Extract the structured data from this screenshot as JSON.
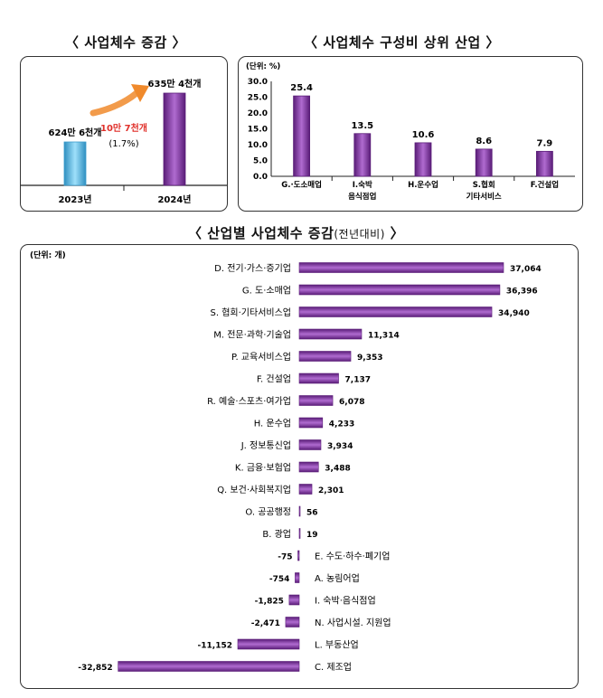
{
  "titles": {
    "left": "〈 사업체수 증감 〉",
    "right": "〈 사업체수 구성비 상위 산업 〉",
    "bottom_main": "〈 산업별 사업체수 증감",
    "bottom_sub": "(전년대비)",
    "bottom_end": " 〉"
  },
  "colors": {
    "blue_bar": "#5bbfe8",
    "purple_bar": "#7a2e9a",
    "arrow": "#f08a2c",
    "increase_text": "#e0302a"
  },
  "chart_data": [
    {
      "type": "bar",
      "title": "〈 사업체수 증감 〉",
      "categories": [
        "2023년",
        "2024년"
      ],
      "values": [
        6246,
        6354
      ],
      "unit": "천개",
      "data_labels": [
        "624만 6천개",
        "635만 4천개"
      ],
      "annotation": {
        "text": "10만 7천개",
        "subtext": "(1.7%)"
      }
    },
    {
      "type": "bar",
      "title": "〈 사업체수 구성비 상위 산업 〉",
      "unit_label": "(단위: %)",
      "categories": [
        [
          "G.·도소매업"
        ],
        [
          "I.숙박",
          "음식점업"
        ],
        [
          "H.운수업"
        ],
        [
          "S.협회",
          "기타서비스"
        ],
        [
          "F.건설업"
        ]
      ],
      "values": [
        25.4,
        13.5,
        10.6,
        8.6,
        7.9
      ],
      "value_labels": [
        "25.4",
        "13.5",
        "10.6",
        "8.6",
        "7.9"
      ],
      "ylim": [
        0,
        30
      ],
      "yticks": [
        "0.0",
        "5.0",
        "10.0",
        "15.0",
        "20.0",
        "25.0",
        "30.0"
      ]
    },
    {
      "type": "bar",
      "orientation": "horizontal",
      "title": "〈 산업별 사업체수 증감(전년대비) 〉",
      "unit_label": "(단위: 개)",
      "categories": [
        "D. 전기·가스·증기업",
        "G. 도·소매업",
        "S. 협회·기타서비스업",
        "M. 전문·과학·기술업",
        "P. 교육서비스업",
        "F. 건설업",
        "R. 예술·스포츠·여가업",
        "H. 운수업",
        "J. 정보통신업",
        "K. 금융·보험업",
        "Q. 보건·사회복지업",
        "O. 공공행정",
        "B. 광업",
        "E. 수도·하수·폐기업",
        "A. 농림어업",
        "I. 숙박·음식점업",
        "N. 사업시설. 지원업",
        "L. 부동산업",
        "C. 제조업"
      ],
      "values": [
        37064,
        36396,
        34940,
        11314,
        9353,
        7137,
        6078,
        4233,
        3934,
        3488,
        2301,
        56,
        19,
        -75,
        -754,
        -1825,
        -2471,
        -11152,
        -32852
      ],
      "value_labels": [
        "37,064",
        "36,396",
        "34,940",
        "11,314",
        "9,353",
        "7,137",
        "6,078",
        "4,233",
        "3,934",
        "3,488",
        "2,301",
        "56",
        "19",
        "-75",
        "-754",
        "-1,825",
        "-2,471",
        "-11,152",
        "-32,852"
      ]
    }
  ]
}
